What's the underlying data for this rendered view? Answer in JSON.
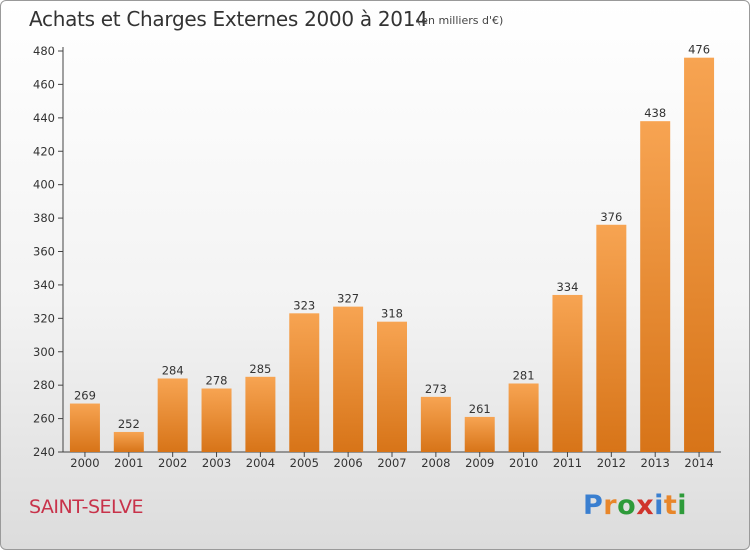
{
  "title": "Achats et Charges Externes 2000 à 2014",
  "unit_note": "(en milliers d'€)",
  "commune": "SAINT-SELVE",
  "logo": {
    "text": "Proxiti",
    "letter_colors": [
      "#3a7fd0",
      "#e8862a",
      "#2e9b3a",
      "#d0342c",
      "#3a7fd0",
      "#e8862a",
      "#2e9b3a"
    ]
  },
  "colors": {
    "bar_top": "#f7a452",
    "bar_bottom": "#d77418",
    "title": "#333333",
    "commune": "#c8324a"
  },
  "chart_data": {
    "type": "bar",
    "title": "Achats et Charges Externes 2000 à 2014",
    "categories": [
      "2000",
      "2001",
      "2002",
      "2003",
      "2004",
      "2005",
      "2006",
      "2007",
      "2008",
      "2009",
      "2010",
      "2011",
      "2012",
      "2013",
      "2014"
    ],
    "values": [
      269,
      252,
      284,
      278,
      285,
      323,
      327,
      318,
      273,
      261,
      281,
      334,
      376,
      438,
      476
    ],
    "ylim": [
      240,
      480
    ],
    "yticks": [
      240,
      260,
      280,
      300,
      320,
      340,
      360,
      380,
      400,
      420,
      440,
      460,
      480
    ],
    "xlabel": "",
    "ylabel": "",
    "grid": false,
    "legend": "none"
  }
}
